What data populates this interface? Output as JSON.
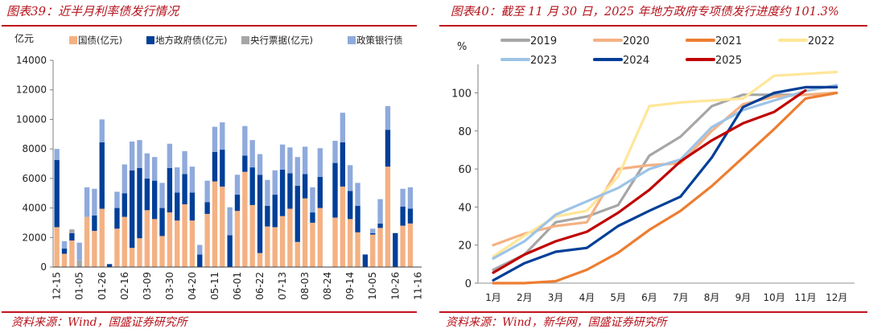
{
  "left": {
    "title": "图表39：近半月利率债发行情况",
    "source": "资料来源：Wind，国盛证券研究所"
  },
  "right": {
    "title": "图表40：截至 11 月 30 日，2025 年地方政府专项债发行进度约 101.3%",
    "source": "资料来源：Wind，新华网，国盛证券研究所"
  },
  "chart_data": [
    {
      "type": "bar",
      "stacked": true,
      "title": "近半月利率债发行情况",
      "ylabel": "亿元",
      "xlabel": "",
      "ylim": [
        0,
        14000
      ],
      "yticks": [
        0,
        2000,
        4000,
        6000,
        8000,
        10000,
        12000,
        14000
      ],
      "legend_position": "top",
      "tick_labels": [
        "12-15",
        "01-05",
        "01-26",
        "02-16",
        "03-09",
        "03-30",
        "04-20",
        "05-11",
        "06-01",
        "06-22",
        "07-13",
        "08-03",
        "08-24",
        "09-14",
        "10-05",
        "10-26",
        "11-16"
      ],
      "tick_every": 3,
      "categories": [
        "12-15",
        "12-22",
        "12-29",
        "01-05",
        "01-12",
        "01-19",
        "01-26",
        "02-02",
        "02-09",
        "02-16",
        "02-23",
        "03-02",
        "03-09",
        "03-16",
        "03-23",
        "03-30",
        "04-06",
        "04-13",
        "04-20",
        "04-27",
        "05-04",
        "05-11",
        "05-18",
        "05-25",
        "06-01",
        "06-08",
        "06-15",
        "06-22",
        "06-29",
        "07-06",
        "07-13",
        "07-20",
        "07-27",
        "08-03",
        "08-10",
        "08-17",
        "08-24",
        "08-31",
        "09-07",
        "09-14",
        "09-21",
        "09-28",
        "10-05",
        "10-12",
        "10-19",
        "10-26",
        "11-02",
        "11-09",
        "11-16"
      ],
      "series": [
        {
          "name": "国债(亿元)",
          "color": "#f4b183",
          "values": [
            2700,
            900,
            1800,
            0,
            3400,
            2450,
            3950,
            0,
            2600,
            3400,
            1300,
            1950,
            3850,
            3250,
            2100,
            3700,
            3150,
            4250,
            3150,
            0,
            3600,
            5800,
            5450,
            0,
            3800,
            6450,
            4200,
            950,
            2750,
            2700,
            3450,
            3950,
            1700,
            4650,
            3000,
            4000,
            0,
            3350,
            5450,
            3250,
            2350,
            0,
            2200,
            2650,
            6800,
            0,
            2800,
            2950,
            0
          ]
        },
        {
          "name": "地方政府债(亿元)",
          "color": "#003f98",
          "values": [
            4550,
            350,
            500,
            0,
            0,
            1050,
            4500,
            200,
            1400,
            1600,
            5250,
            4750,
            2150,
            2600,
            1900,
            3000,
            1900,
            2050,
            1900,
            850,
            800,
            2000,
            2500,
            2150,
            1100,
            1100,
            2550,
            5300,
            1400,
            2200,
            3150,
            2400,
            3800,
            1650,
            700,
            2100,
            0,
            3700,
            3000,
            1900,
            1800,
            850,
            100,
            300,
            2500,
            2300,
            1300,
            1000,
            0
          ]
        },
        {
          "name": "央行票据(亿元)",
          "color": "#a6a6a6",
          "values": [
            0,
            0,
            250,
            450,
            0,
            0,
            0,
            0,
            0,
            0,
            0,
            0,
            0,
            0,
            0,
            0,
            0,
            0,
            0,
            0,
            0,
            0,
            0,
            0,
            0,
            0,
            0,
            0,
            0,
            0,
            0,
            0,
            0,
            0,
            0,
            0,
            0,
            0,
            0,
            0,
            0,
            0,
            0,
            0,
            0,
            0,
            0,
            0,
            0
          ]
        },
        {
          "name": "政策银行债",
          "color": "#8faadc",
          "values": [
            750,
            500,
            0,
            1200,
            2000,
            1800,
            1550,
            0,
            1100,
            1950,
            1950,
            1900,
            1700,
            1600,
            1700,
            1650,
            1700,
            1550,
            1750,
            650,
            1450,
            1700,
            1850,
            1900,
            1350,
            2000,
            1850,
            1400,
            1750,
            1650,
            1700,
            1750,
            1950,
            1850,
            1700,
            1950,
            0,
            1500,
            2000,
            1750,
            1550,
            0,
            300,
            1650,
            1600,
            0,
            1200,
            1450,
            0
          ]
        }
      ]
    },
    {
      "type": "line",
      "title": "截至11月30日，2025年地方政府专项债发行进度约101.3%",
      "ylabel": "%",
      "xlabel": "",
      "ylim": [
        0,
        115
      ],
      "yticks": [
        0,
        20,
        40,
        60,
        80,
        100
      ],
      "legend_position": "top",
      "x": [
        "1月",
        "2月",
        "3月",
        "4月",
        "5月",
        "6月",
        "7月",
        "8月",
        "9月",
        "10月",
        "11月",
        "12月"
      ],
      "series": [
        {
          "name": "2019",
          "color": "#a6a6a6",
          "values": [
            7,
            15,
            32,
            35,
            41,
            67,
            77,
            93,
            99,
            99,
            99,
            100
          ]
        },
        {
          "name": "2020",
          "color": "#f4b183",
          "values": [
            20,
            26,
            30,
            32,
            60,
            62,
            63,
            80,
            94,
            98,
            99,
            100
          ]
        },
        {
          "name": "2021",
          "color": "#ed7d31",
          "values": [
            0,
            0,
            1,
            7,
            16,
            28,
            38,
            51,
            66,
            81,
            97,
            100
          ]
        },
        {
          "name": "2022",
          "color": "#ffe699",
          "values": [
            14,
            25,
            35,
            38,
            56,
            93,
            95,
            96,
            97,
            109,
            110,
            111
          ]
        },
        {
          "name": "2023",
          "color": "#9dc3e6",
          "values": [
            13,
            22,
            36,
            43,
            50,
            60,
            65,
            82,
            91,
            96,
            101,
            104
          ]
        },
        {
          "name": "2024",
          "color": "#003f98",
          "values": [
            1.5,
            10.5,
            16.5,
            18.5,
            30,
            38,
            45.5,
            66,
            92.5,
            100,
            103,
            103
          ]
        },
        {
          "name": "2025",
          "color": "#c00000",
          "values": [
            5.5,
            15,
            22,
            27,
            37,
            49,
            64,
            75,
            84,
            90,
            101.3,
            null
          ]
        }
      ]
    }
  ]
}
